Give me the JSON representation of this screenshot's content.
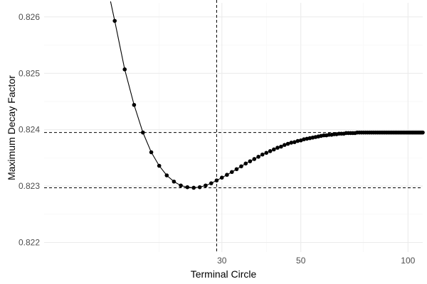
{
  "chart_data": {
    "type": "line",
    "title": "",
    "xlabel": "Terminal Circle",
    "ylabel": "Maximum Decay Factor",
    "x_scale": "log",
    "xlim": [
      9.5,
      110
    ],
    "ylim": [
      0.82183,
      0.82625
    ],
    "x_ticks": [
      30,
      50,
      100
    ],
    "x_minor_ticks": [
      20,
      40,
      75
    ],
    "y_ticks": [
      0.822,
      0.823,
      0.824,
      0.825,
      0.826
    ],
    "y_tick_labels": [
      "0.822",
      "0.823",
      "0.824",
      "0.825",
      "0.826"
    ],
    "grid": true,
    "legend": "none",
    "reference_lines": {
      "vertical_x": 29,
      "horizontal_y": [
        0.82297,
        0.82395
      ],
      "style": "dashed"
    },
    "series": [
      {
        "x": [
          15,
          16,
          17,
          18,
          19,
          20,
          21,
          22,
          23,
          24,
          25,
          26,
          27,
          28,
          29,
          30,
          31,
          32,
          33,
          34,
          35,
          36,
          37,
          38,
          39,
          40,
          41,
          42,
          43,
          44,
          45,
          46,
          47,
          48,
          49,
          50,
          51,
          52,
          53,
          54,
          55,
          56,
          57,
          58,
          59,
          60,
          61,
          62,
          63,
          64,
          65,
          66,
          67,
          68,
          69,
          70,
          71,
          72,
          73,
          74,
          75,
          76,
          77,
          78,
          79,
          80,
          81,
          82,
          83,
          84,
          85,
          86,
          87,
          88,
          89,
          90,
          91,
          92,
          93,
          94,
          95,
          96,
          97,
          98,
          99,
          100,
          101,
          102,
          103,
          104,
          105,
          106,
          107,
          108,
          109,
          110
        ],
        "values": [
          0.82593,
          0.82507,
          0.82444,
          0.82395,
          0.8236,
          0.82336,
          0.82319,
          0.82308,
          0.82301,
          0.82298,
          0.82297,
          0.82298,
          0.82301,
          0.82305,
          0.8231,
          0.82315,
          0.8232,
          0.82325,
          0.8233,
          0.82335,
          0.8234,
          0.82344,
          0.82348,
          0.82352,
          0.82356,
          0.82359,
          0.82362,
          0.82365,
          0.82368,
          0.8237,
          0.82373,
          0.82375,
          0.82377,
          0.82378,
          0.8238,
          0.82381,
          0.82383,
          0.82384,
          0.82385,
          0.82386,
          0.82387,
          0.82388,
          0.82389,
          0.8239,
          0.8239,
          0.82391,
          0.82391,
          0.82392,
          0.82392,
          0.82393,
          0.82393,
          0.82393,
          0.82394,
          0.82394,
          0.82394,
          0.82394,
          0.82394,
          0.82395,
          0.82395,
          0.82395,
          0.82395,
          0.82395,
          0.82395,
          0.82395,
          0.82395,
          0.82395,
          0.82395,
          0.82395,
          0.82395,
          0.82395,
          0.82395,
          0.82395,
          0.82395,
          0.82395,
          0.82395,
          0.82395,
          0.82395,
          0.82395,
          0.82395,
          0.82395,
          0.82395,
          0.82395,
          0.82395,
          0.82395,
          0.82395,
          0.82395,
          0.82395,
          0.82395,
          0.82395,
          0.82395,
          0.82395,
          0.82395,
          0.82395,
          0.82395,
          0.82395,
          0.82395
        ]
      }
    ],
    "colors": {
      "line": "#000000",
      "points": "#000000",
      "grid_major": "#ebebeb",
      "grid_minor": "#f5f5f5",
      "ref_lines": "#000000"
    }
  }
}
